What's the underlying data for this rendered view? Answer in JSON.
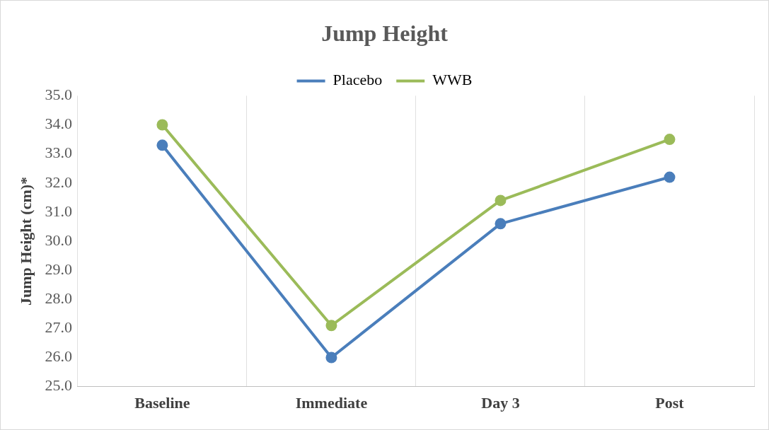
{
  "chart_data": {
    "type": "line",
    "title": "Jump Height",
    "ylabel": "Jump Height (cm)*",
    "categories": [
      "Baseline",
      "Immediate",
      "Day 3",
      "Post"
    ],
    "series": [
      {
        "name": "Placebo",
        "color": "#4a7ebb",
        "values": [
          33.3,
          26.0,
          30.6,
          32.2
        ]
      },
      {
        "name": "WWB",
        "color": "#9bbb59",
        "values": [
          34.0,
          27.1,
          31.4,
          33.5
        ]
      }
    ],
    "ylim": [
      25,
      35
    ],
    "yticks": [
      {
        "value": 25,
        "label": "25.0"
      },
      {
        "value": 26,
        "label": "26.0"
      },
      {
        "value": 27,
        "label": "27.0"
      },
      {
        "value": 28,
        "label": "28.0"
      },
      {
        "value": 29,
        "label": "29.0"
      },
      {
        "value": 30,
        "label": "30.0"
      },
      {
        "value": 31,
        "label": "31.0"
      },
      {
        "value": 32,
        "label": "32.0"
      },
      {
        "value": 33,
        "label": "33.0"
      },
      {
        "value": 34,
        "label": "34.0"
      },
      {
        "value": 35,
        "label": "35.0"
      }
    ],
    "grid": "x",
    "legend": "top",
    "marker": "circle",
    "line_style": "solid"
  }
}
